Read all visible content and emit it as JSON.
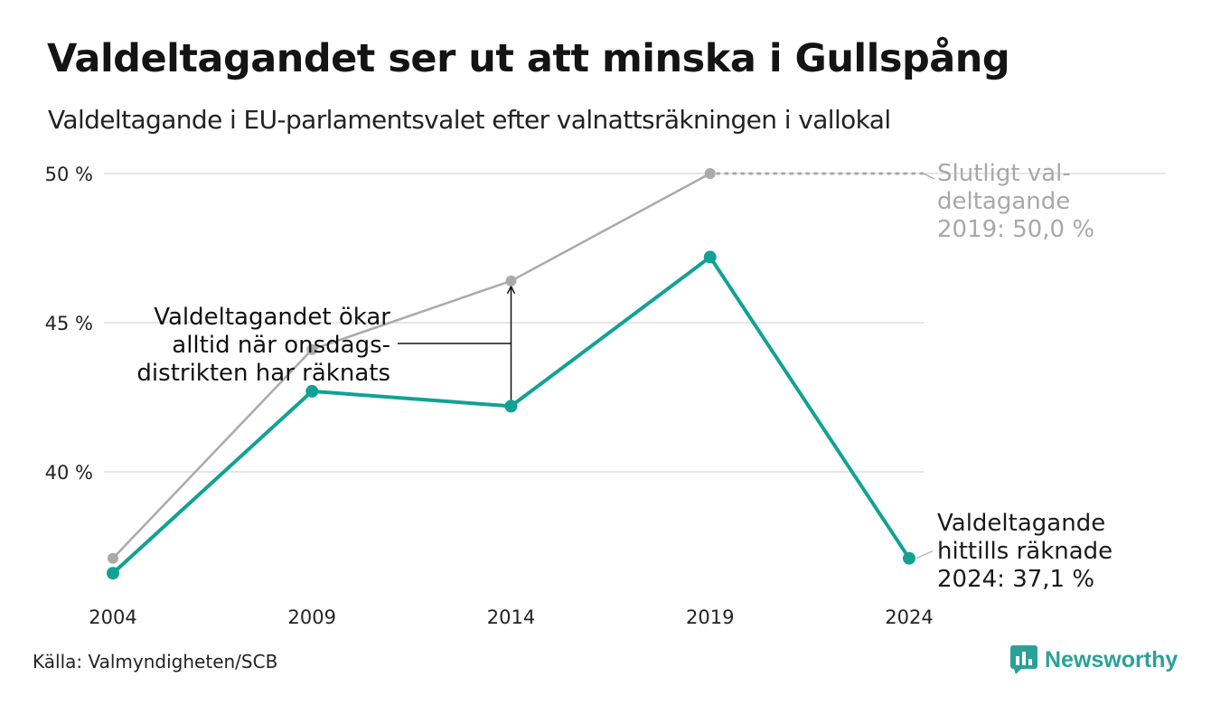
{
  "header": {
    "title": "Valdeltagandet ser ut att minska i Gullspång",
    "subtitle": "Valdeltagande i EU-parlamentsvalet efter valnattsräkningen i vallokal"
  },
  "footer": {
    "source": "Källa: Valmyndigheten/SCB",
    "brand": "Newsworthy"
  },
  "colors": {
    "election_night": "#12a195",
    "final": "#aaaaaa",
    "grid": "#e6e6e6",
    "annotation": "#111111"
  },
  "chart_data": {
    "type": "line",
    "x": [
      "2004",
      "2009",
      "2014",
      "2019",
      "2024"
    ],
    "ylim": [
      36,
      50
    ],
    "yticks": [
      40,
      45,
      50
    ],
    "ytick_labels": [
      "40 %",
      "45 %",
      "50 %"
    ],
    "grid": true,
    "series": [
      {
        "key": "final",
        "values": [
          37.1,
          44.1,
          46.4,
          50.0,
          null
        ]
      },
      {
        "key": "election_night",
        "values": [
          36.6,
          42.7,
          42.2,
          47.2,
          37.1
        ]
      }
    ],
    "annotations": {
      "final_label": [
        "Slutligt val-",
        "deltagande",
        "2019: 50,0 %"
      ],
      "current_label": [
        "Valdeltagande",
        "hittills räknade",
        "2024: 37,1 %"
      ],
      "note": [
        "Valdeltagandet ökar",
        "alltid när onsdags-",
        "distrikten har räknats"
      ]
    }
  }
}
